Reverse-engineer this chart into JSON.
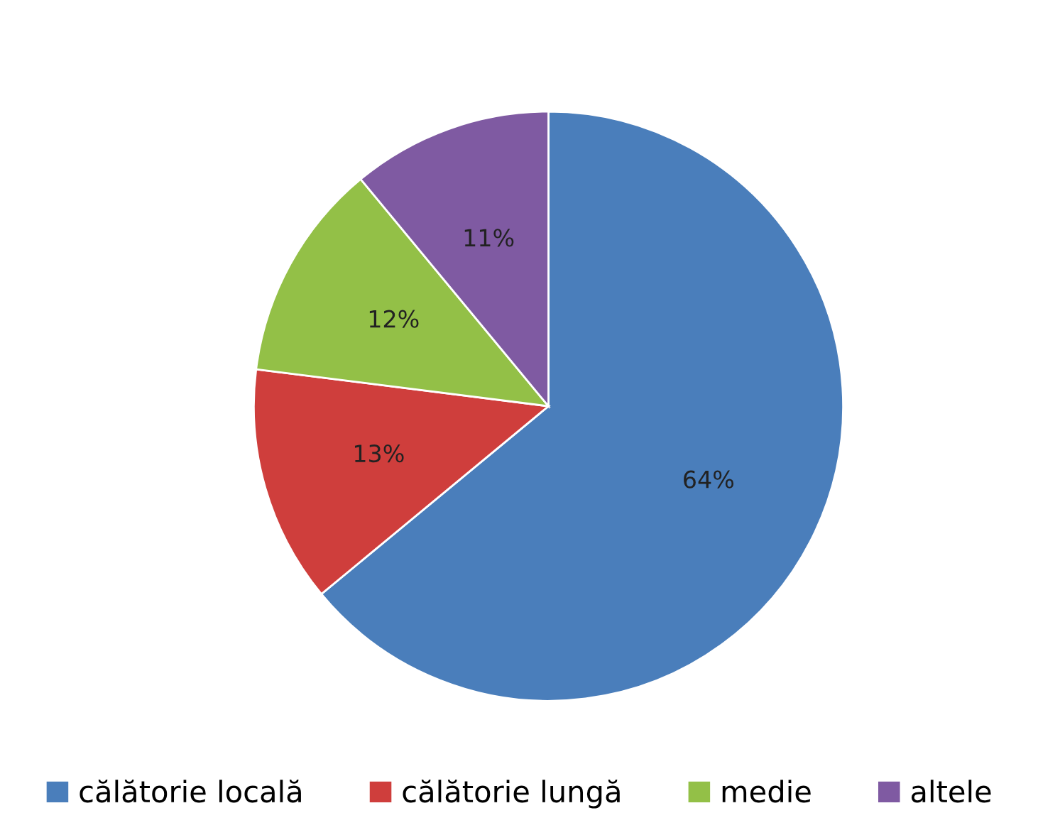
{
  "chart_data": {
    "type": "pie",
    "categories": [
      "călătorie locală",
      "călătorie lungă",
      "medie",
      "altele"
    ],
    "values": [
      64,
      13,
      12,
      11
    ],
    "value_labels": [
      "64%",
      "13%",
      "12%",
      "11%"
    ],
    "colors": [
      "#4a7ebb",
      "#cf3e3c",
      "#93c047",
      "#7f5aa2"
    ],
    "legend": "bottom"
  }
}
